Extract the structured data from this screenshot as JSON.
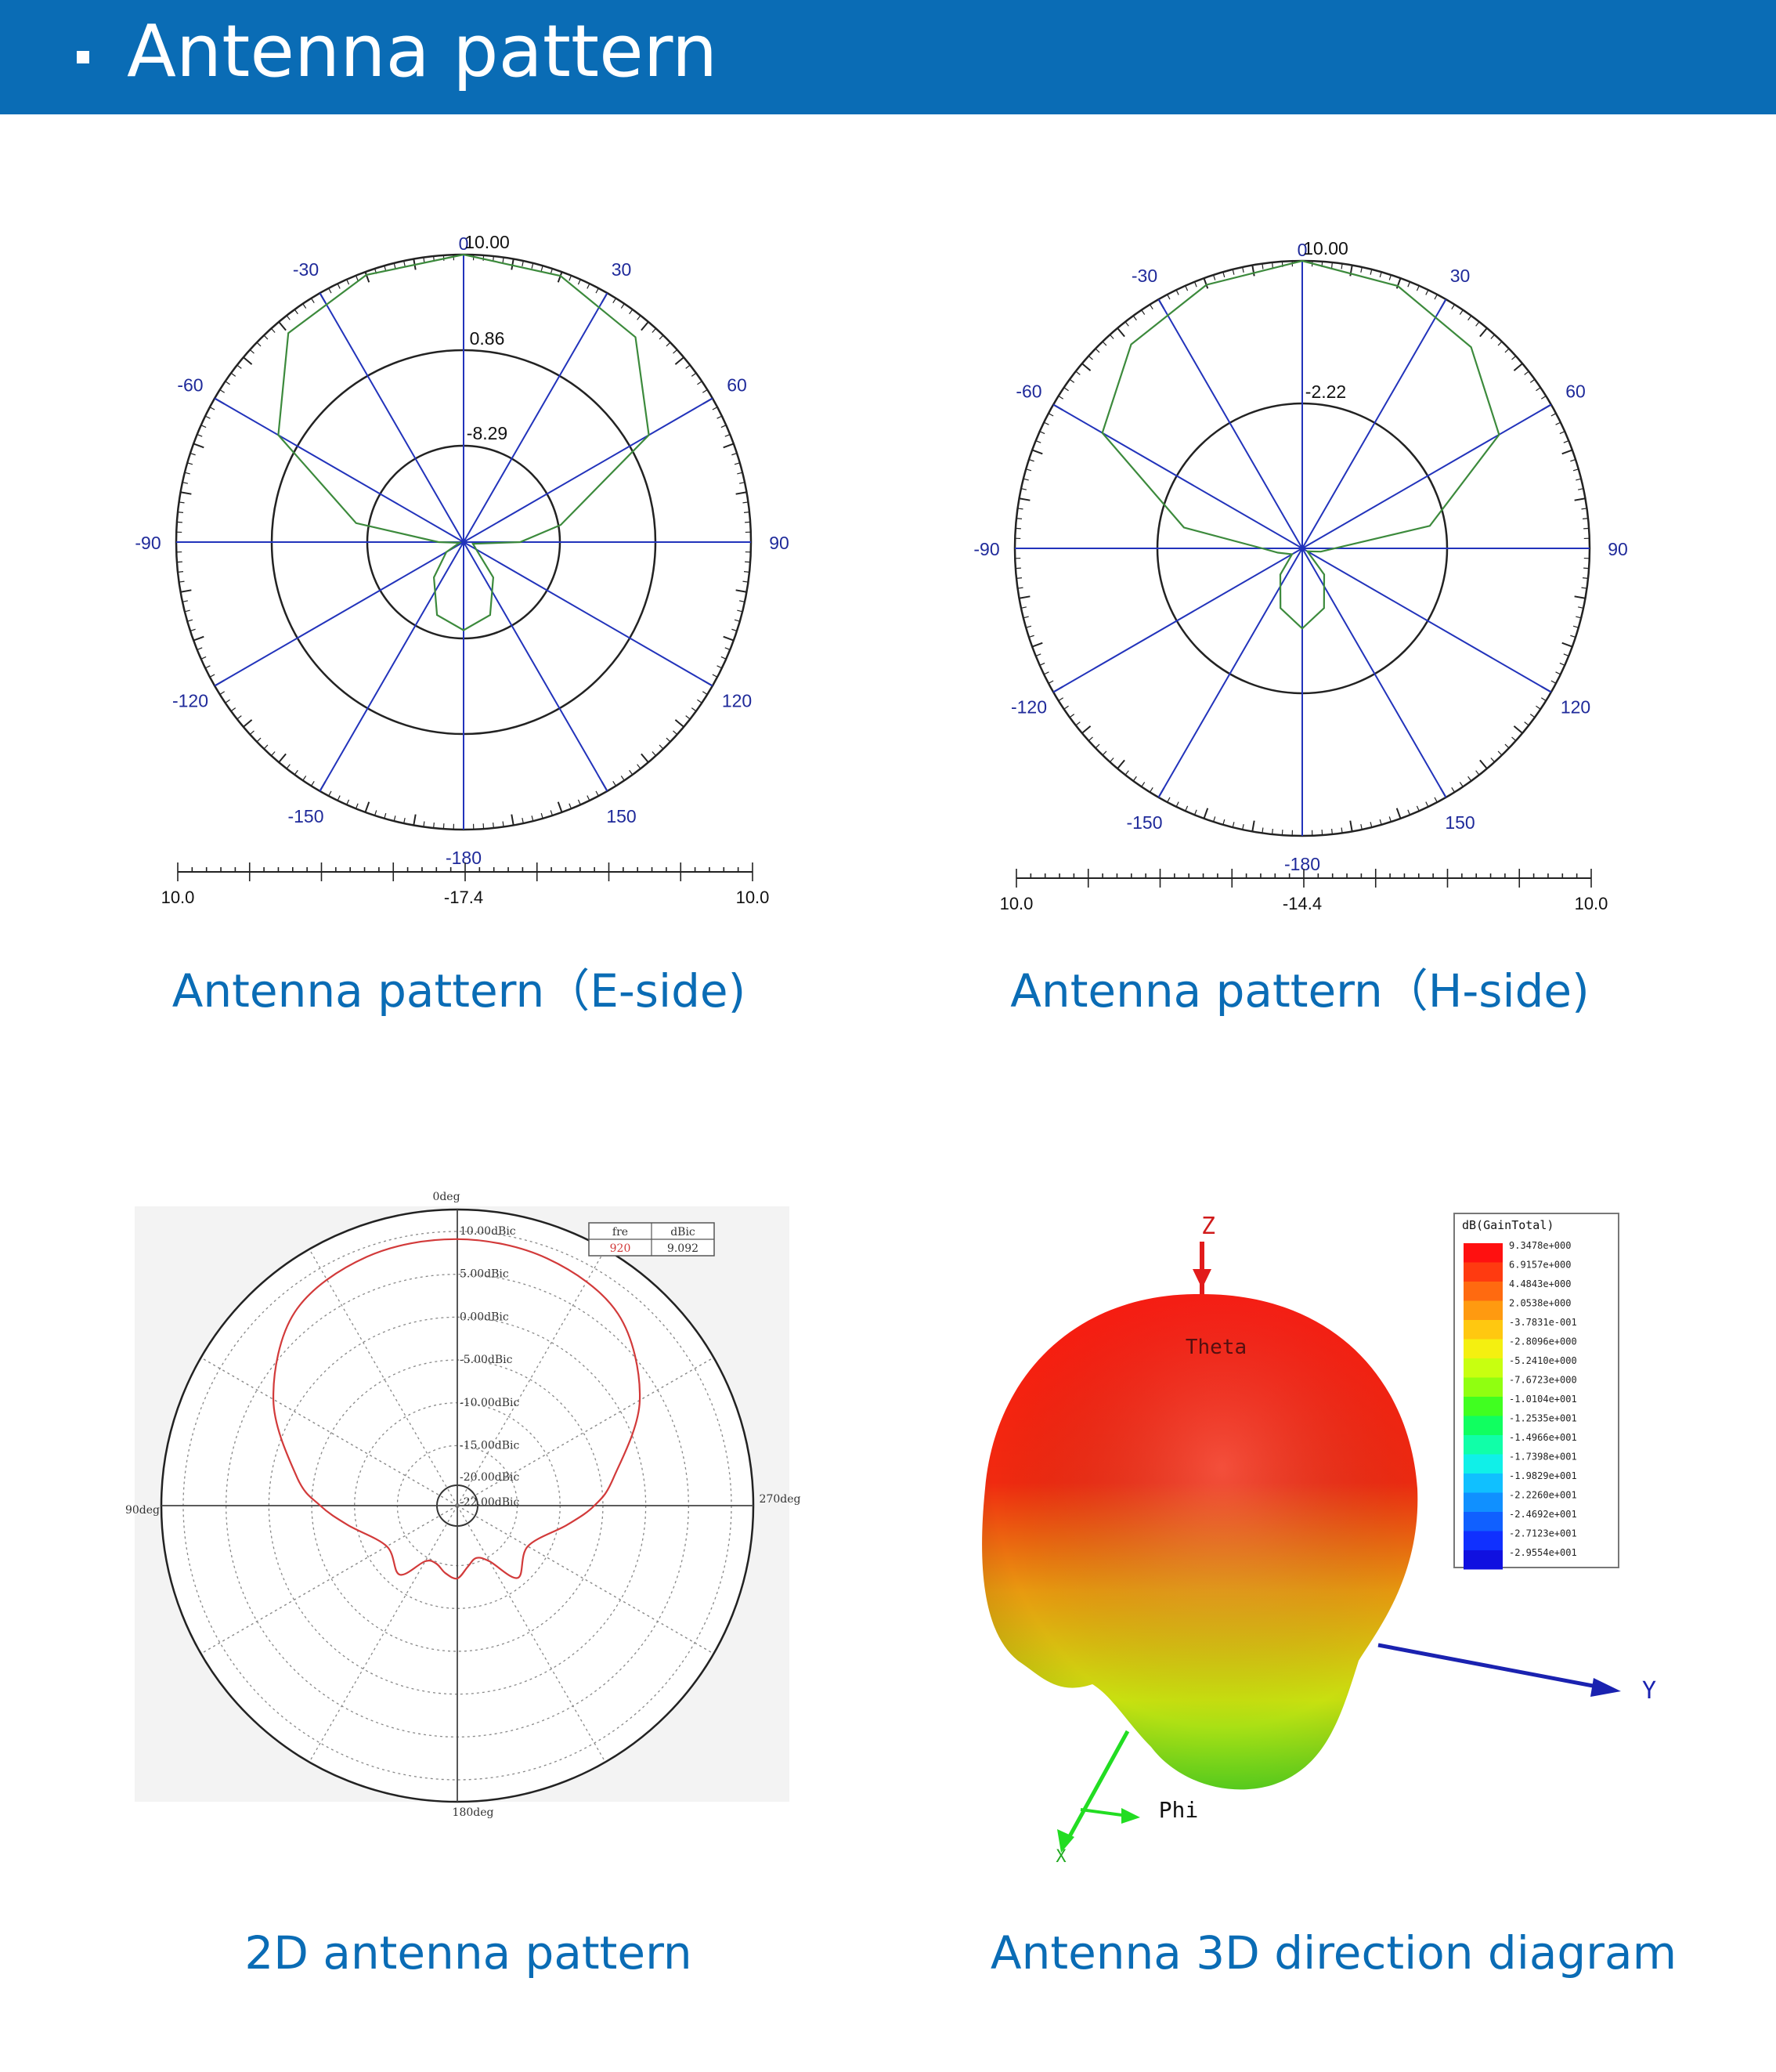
{
  "header": {
    "title": "Antenna pattern"
  },
  "colors": {
    "header_bg": "#0a6cb5",
    "caption": "#0a6cb5",
    "grid_blue": "#2233bb",
    "pattern_green": "#3c8a3c",
    "pattern_red": "#d23a3a",
    "tick_blue": "#1f2a9a"
  },
  "panels": {
    "e_side": {
      "caption": "Antenna pattern（E-side)",
      "angle_labels": [
        "0",
        "30",
        "60",
        "90",
        "120",
        "150",
        "-180",
        "-150",
        "-120",
        "-90",
        "-60",
        "-30"
      ],
      "ring_labels": [
        "10.00",
        "0.86",
        "-8.29"
      ],
      "scale": {
        "left": "10.0",
        "center": "-17.4",
        "right": "10.0"
      }
    },
    "h_side": {
      "caption": "Antenna pattern（H-side)",
      "angle_labels": [
        "0",
        "30",
        "60",
        "90",
        "120",
        "150",
        "-180",
        "-150",
        "-120",
        "-90",
        "-60",
        "-30"
      ],
      "ring_labels": [
        "10.00",
        "-2.22"
      ],
      "scale": {
        "left": "10.0",
        "center": "-14.4",
        "right": "10.0"
      }
    },
    "pattern_2d": {
      "caption": "2D antenna pattern",
      "angle_labels": {
        "top": "0deg",
        "left": "90deg",
        "right": "270deg",
        "bottom": "180deg"
      },
      "ring_labels": [
        "10.00dBic",
        "5.00dBic",
        "0.00dBic",
        "-5.00dBic",
        "-10.00dBic",
        "-15.00dBic",
        "-20.00dBic",
        "-22.00dBic"
      ],
      "legend": {
        "headers": [
          "fre",
          "dBic"
        ],
        "row": [
          "920",
          "9.092"
        ]
      }
    },
    "pattern_3d": {
      "caption": "Antenna 3D direction diagram",
      "axis_labels": {
        "z": "Z",
        "y": "Y",
        "x": "X",
        "phi": "Phi",
        "theta": "Theta"
      },
      "colorbar": {
        "title": "dB(GainTotal)",
        "values": [
          "9.3478e+000",
          "6.9157e+000",
          "4.4843e+000",
          "2.0538e+000",
          "-3.7831e-001",
          "-2.8096e+000",
          "-5.2410e+000",
          "-7.6723e+000",
          "-1.0104e+001",
          "-1.2535e+001",
          "-1.4966e+001",
          "-1.7398e+001",
          "-1.9829e+001",
          "-2.2260e+001",
          "-2.4692e+001",
          "-2.7123e+001",
          "-2.9554e+001"
        ],
        "colors": [
          "#ff1010",
          "#ff3a10",
          "#ff6a10",
          "#ff9a10",
          "#ffc810",
          "#f4f010",
          "#c8ff10",
          "#90ff10",
          "#40ff20",
          "#10ff60",
          "#10ffa8",
          "#10f0e8",
          "#10c0ff",
          "#1090ff",
          "#1060ff",
          "#1030ff",
          "#1010e0"
        ]
      }
    }
  },
  "chart_data": [
    {
      "type": "polar-line",
      "series": [
        {
          "theta_deg": [
            0,
            20,
            40,
            60,
            80,
            90,
            100,
            120,
            140,
            160,
            180,
            200,
            220,
            240,
            260,
            270,
            280,
            300,
            320,
            340
          ],
          "r_db": [
            10,
            9.6,
            8.1,
            3,
            -8,
            -12,
            -16.5,
            -16,
            -13,
            -10,
            -9,
            -10,
            -13,
            -15.5,
            -17,
            -15,
            -7,
            3,
            8.6,
            9.7
          ]
        }
      ],
      "r_range_db": [
        -17.4,
        10.0
      ],
      "angle_ticks_deg": [
        -180,
        -150,
        -120,
        -90,
        -60,
        -30,
        0,
        30,
        60,
        90,
        120,
        150
      ]
    },
    {
      "type": "polar-line",
      "series": [
        {
          "theta_deg": [
            0,
            20,
            40,
            60,
            80,
            100,
            120,
            140,
            160,
            180,
            200,
            220,
            240,
            260,
            270,
            280,
            300,
            320,
            340
          ],
          "r_db": [
            10,
            9.3,
            7.9,
            4.9,
            -3.4,
            -12.8,
            -13.9,
            -11.5,
            -9,
            -7.6,
            -9,
            -11.5,
            -13.4,
            -12.3,
            -11,
            -4.2,
            5.2,
            8.2,
            9.4
          ]
        }
      ],
      "r_range_db": [
        -14.4,
        10.0
      ],
      "angle_ticks_deg": [
        -180,
        -150,
        -120,
        -90,
        -60,
        -30,
        0,
        30,
        60,
        90,
        120,
        150
      ]
    },
    {
      "type": "polar-line",
      "series": [
        {
          "name": "920",
          "theta_deg": [
            0,
            20,
            40,
            60,
            80,
            90,
            100,
            120,
            140,
            150,
            160,
            170,
            180,
            190,
            200,
            210,
            220,
            240,
            260,
            270,
            280,
            300,
            320,
            340
          ],
          "r_db": [
            9.1,
            8.7,
            7.2,
            2.6,
            -3.5,
            -6,
            -9,
            -12.5,
            -11,
            -14.5,
            -15.5,
            -14.8,
            -13.5,
            -14,
            -14.8,
            -14.5,
            -11.5,
            -12.5,
            -9,
            -6,
            -3,
            2.8,
            7.5,
            8.9
          ]
        }
      ],
      "r_range_db": [
        -22.0,
        10.0
      ],
      "r_ticks_db": [
        10,
        5,
        0,
        -5,
        -10,
        -15,
        -20,
        -22
      ]
    }
  ]
}
